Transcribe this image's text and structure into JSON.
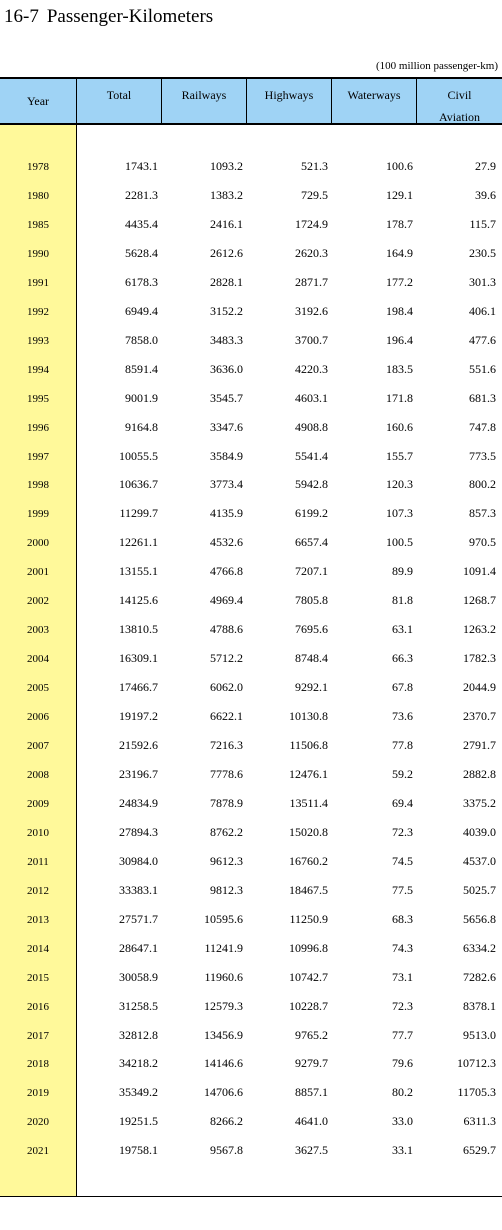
{
  "title": {
    "number": "16-7",
    "text": "Passenger-Kilometers"
  },
  "unit_note": "(100 million passenger-km)",
  "headers": {
    "year": "Year",
    "total": "Total",
    "railways": "Railways",
    "highways": "Highways",
    "waterways": "Waterways",
    "civil_line1": "Civil",
    "civil_line2": "Aviation"
  },
  "rows": [
    [
      "1978",
      "1743.1",
      "1093.2",
      "521.3",
      "100.6",
      "27.9"
    ],
    [
      "1980",
      "2281.3",
      "1383.2",
      "729.5",
      "129.1",
      "39.6"
    ],
    [
      "1985",
      "4435.4",
      "2416.1",
      "1724.9",
      "178.7",
      "115.7"
    ],
    [
      "1990",
      "5628.4",
      "2612.6",
      "2620.3",
      "164.9",
      "230.5"
    ],
    [
      "1991",
      "6178.3",
      "2828.1",
      "2871.7",
      "177.2",
      "301.3"
    ],
    [
      "1992",
      "6949.4",
      "3152.2",
      "3192.6",
      "198.4",
      "406.1"
    ],
    [
      "1993",
      "7858.0",
      "3483.3",
      "3700.7",
      "196.4",
      "477.6"
    ],
    [
      "1994",
      "8591.4",
      "3636.0",
      "4220.3",
      "183.5",
      "551.6"
    ],
    [
      "1995",
      "9001.9",
      "3545.7",
      "4603.1",
      "171.8",
      "681.3"
    ],
    [
      "1996",
      "9164.8",
      "3347.6",
      "4908.8",
      "160.6",
      "747.8"
    ],
    [
      "1997",
      "10055.5",
      "3584.9",
      "5541.4",
      "155.7",
      "773.5"
    ],
    [
      "1998",
      "10636.7",
      "3773.4",
      "5942.8",
      "120.3",
      "800.2"
    ],
    [
      "1999",
      "11299.7",
      "4135.9",
      "6199.2",
      "107.3",
      "857.3"
    ],
    [
      "2000",
      "12261.1",
      "4532.6",
      "6657.4",
      "100.5",
      "970.5"
    ],
    [
      "2001",
      "13155.1",
      "4766.8",
      "7207.1",
      "89.9",
      "1091.4"
    ],
    [
      "2002",
      "14125.6",
      "4969.4",
      "7805.8",
      "81.8",
      "1268.7"
    ],
    [
      "2003",
      "13810.5",
      "4788.6",
      "7695.6",
      "63.1",
      "1263.2"
    ],
    [
      "2004",
      "16309.1",
      "5712.2",
      "8748.4",
      "66.3",
      "1782.3"
    ],
    [
      "2005",
      "17466.7",
      "6062.0",
      "9292.1",
      "67.8",
      "2044.9"
    ],
    [
      "2006",
      "19197.2",
      "6622.1",
      "10130.8",
      "73.6",
      "2370.7"
    ],
    [
      "2007",
      "21592.6",
      "7216.3",
      "11506.8",
      "77.8",
      "2791.7"
    ],
    [
      "2008",
      "23196.7",
      "7778.6",
      "12476.1",
      "59.2",
      "2882.8"
    ],
    [
      "2009",
      "24834.9",
      "7878.9",
      "13511.4",
      "69.4",
      "3375.2"
    ],
    [
      "2010",
      "27894.3",
      "8762.2",
      "15020.8",
      "72.3",
      "4039.0"
    ],
    [
      "2011",
      "30984.0",
      "9612.3",
      "16760.2",
      "74.5",
      "4537.0"
    ],
    [
      "2012",
      "33383.1",
      "9812.3",
      "18467.5",
      "77.5",
      "5025.7"
    ],
    [
      "2013",
      "27571.7",
      "10595.6",
      "11250.9",
      "68.3",
      "5656.8"
    ],
    [
      "2014",
      "28647.1",
      "11241.9",
      "10996.8",
      "74.3",
      "6334.2"
    ],
    [
      "2015",
      "30058.9",
      "11960.6",
      "10742.7",
      "73.1",
      "7282.6"
    ],
    [
      "2016",
      "31258.5",
      "12579.3",
      "10228.7",
      "72.3",
      "8378.1"
    ],
    [
      "2017",
      "32812.8",
      "13456.9",
      "9765.2",
      "77.7",
      "9513.0"
    ],
    [
      "2018",
      "34218.2",
      "14146.6",
      "9279.7",
      "79.6",
      "10712.3"
    ],
    [
      "2019",
      "35349.2",
      "14706.6",
      "8857.1",
      "80.2",
      "11705.3"
    ],
    [
      "2020",
      "19251.5",
      "8266.2",
      "4641.0",
      "33.0",
      "6311.3"
    ],
    [
      "2021",
      "19758.1",
      "9567.8",
      "3627.5",
      "33.1",
      "6529.7"
    ]
  ]
}
